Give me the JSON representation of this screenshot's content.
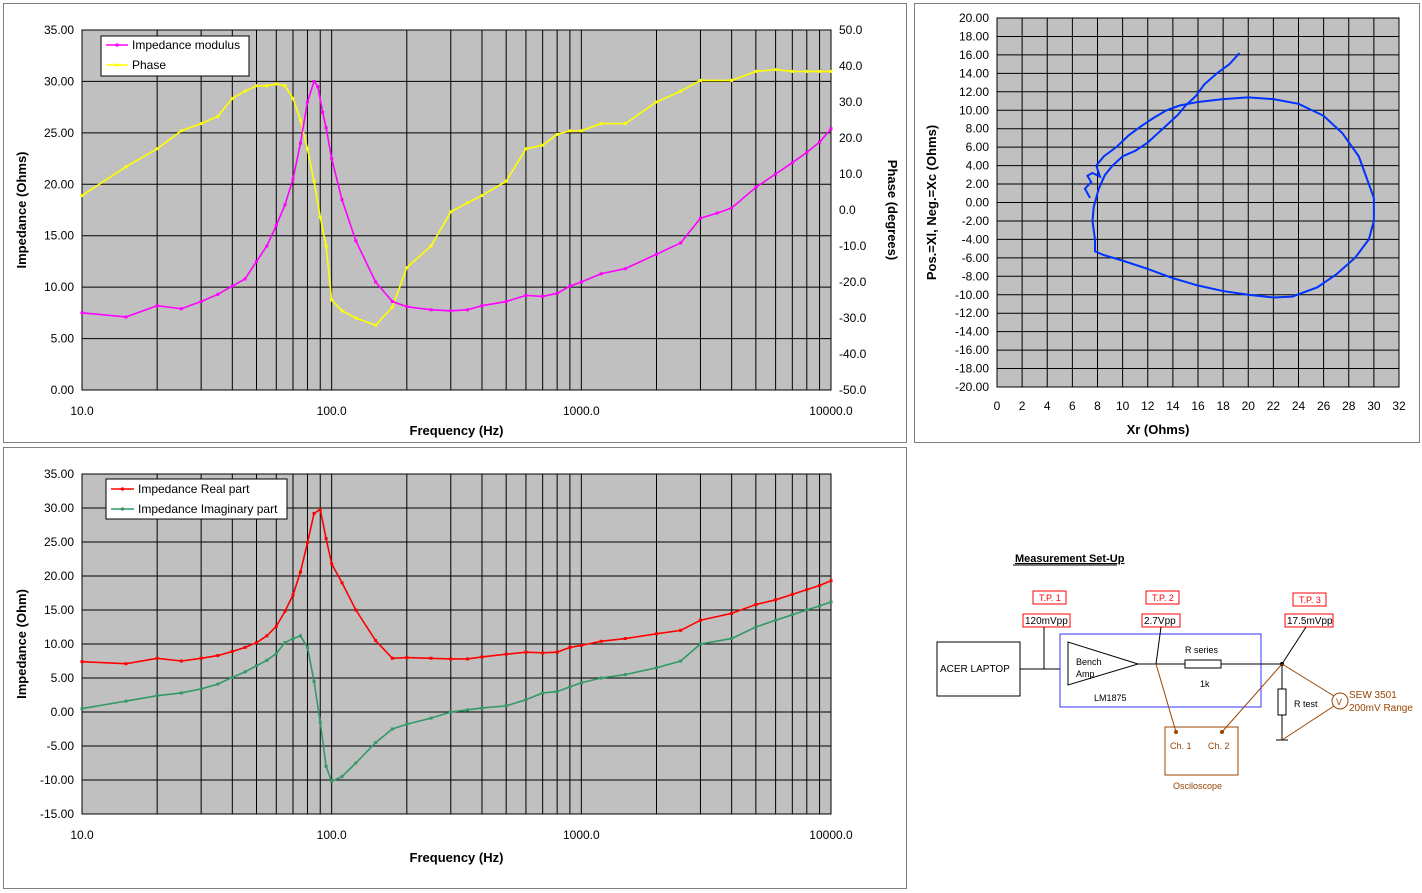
{
  "colors": {
    "plot_bg": "#c0c0c0",
    "modulus": "#ff00ff",
    "phase": "#ffff00",
    "real": "#ff0000",
    "imag": "#339966",
    "polar": "#0033ff",
    "tp_red": "#ff0000",
    "box_blue": "#3333ff",
    "scope_brown": "#994400"
  },
  "chart_data": [
    {
      "id": "modulus_phase",
      "type": "line",
      "xlabel": "Frequency (Hz)",
      "ylabel": "Impedance (Ohms)",
      "y2label": "Phase (degrees)",
      "xscale": "log",
      "xlim": [
        10,
        10000
      ],
      "ylim": [
        0,
        35
      ],
      "y2lim": [
        -50,
        50
      ],
      "xticks": [
        "10.0",
        "100.0",
        "1000.0",
        "10000.0"
      ],
      "yticks": [
        "0.00",
        "5.00",
        "10.00",
        "15.00",
        "20.00",
        "25.00",
        "30.00",
        "35.00"
      ],
      "y2ticks": [
        "-50.0",
        "-40.0",
        "-30.0",
        "-20.0",
        "-10.0",
        "0.0",
        "10.0",
        "20.0",
        "30.0",
        "40.0",
        "50.0"
      ],
      "grid": true,
      "legend": "top-left",
      "series": [
        {
          "name": "Impedance modulus",
          "axis": "left",
          "x": [
            10,
            15,
            20,
            25,
            30,
            35,
            40,
            45,
            50,
            55,
            60,
            65,
            70,
            75,
            80,
            85,
            88,
            92,
            95,
            100,
            110,
            125,
            150,
            175,
            200,
            250,
            300,
            350,
            400,
            500,
            600,
            700,
            800,
            900,
            1000,
            1200,
            1500,
            2000,
            2500,
            3000,
            3500,
            4000,
            5000,
            6000,
            7000,
            8000,
            9000,
            10000
          ],
          "y": [
            7.5,
            7.1,
            8.2,
            7.9,
            8.6,
            9.3,
            10.1,
            10.8,
            12.5,
            14.0,
            16.0,
            18.0,
            20.5,
            24.0,
            28.0,
            30.0,
            29.5,
            27.0,
            25.5,
            22.5,
            18.5,
            14.5,
            10.5,
            8.6,
            8.1,
            7.8,
            7.7,
            7.8,
            8.2,
            8.6,
            9.2,
            9.1,
            9.4,
            10.1,
            10.5,
            11.3,
            11.8,
            13.2,
            14.3,
            16.7,
            17.2,
            17.7,
            19.7,
            21.0,
            22.1,
            23.1,
            24.1,
            25.4
          ]
        },
        {
          "name": "Phase",
          "axis": "right",
          "x": [
            10,
            15,
            20,
            25,
            30,
            35,
            40,
            45,
            50,
            55,
            60,
            65,
            70,
            75,
            80,
            85,
            90,
            95,
            100,
            110,
            125,
            150,
            175,
            200,
            250,
            300,
            350,
            400,
            500,
            600,
            700,
            800,
            900,
            1000,
            1200,
            1500,
            2000,
            2500,
            3000,
            4000,
            5000,
            6000,
            7000,
            8000,
            9000,
            10000
          ],
          "y": [
            4,
            12,
            17,
            22,
            24,
            26,
            31,
            33,
            34.5,
            34.5,
            35,
            34.5,
            31,
            25,
            17,
            8,
            -2,
            -10,
            -25,
            -28,
            -30,
            -32,
            -27,
            -16,
            -10,
            -0.5,
            2,
            4,
            8,
            17,
            18,
            21,
            22,
            22,
            24,
            24,
            30,
            33,
            36,
            36,
            38.5,
            39,
            38.5,
            38.5,
            38.5,
            38.5
          ]
        }
      ]
    },
    {
      "id": "polar",
      "type": "line",
      "xlabel": "Xr (Ohms)",
      "ylabel": "Pos.=Xl, Neg.=Xc (Ohms)",
      "xlim": [
        0,
        32
      ],
      "ylim": [
        -20,
        20
      ],
      "xticks": [
        "0",
        "2",
        "4",
        "6",
        "8",
        "10",
        "12",
        "14",
        "16",
        "18",
        "20",
        "22",
        "24",
        "26",
        "28",
        "30",
        "32"
      ],
      "yticks": [
        "-20.00",
        "-18.00",
        "-16.00",
        "-14.00",
        "-12.00",
        "-10.00",
        "-8.00",
        "-6.00",
        "-4.00",
        "-2.00",
        "0.00",
        "2.00",
        "4.00",
        "6.00",
        "8.00",
        "10.00",
        "12.00",
        "14.00",
        "16.00",
        "18.00",
        "20.00"
      ],
      "grid": true,
      "series": [
        {
          "x": [
            7.4,
            7.0,
            7.5,
            7.2,
            7.6,
            8.2,
            7.9,
            8.5,
            9.5,
            10.5,
            11.5,
            12.5,
            13.5,
            14.5,
            16.0,
            18.0,
            20.0,
            22.0,
            24.0,
            26.0,
            27.5,
            28.8,
            29.6,
            30.0,
            30.0,
            29.6,
            28.5,
            27.0,
            25.5,
            23.5,
            22.0,
            20.0,
            18.0,
            16.0,
            14.0,
            12.0,
            10.0,
            8.5,
            7.8,
            7.8,
            7.6,
            7.7,
            8.1,
            8.6,
            9.2,
            10.0,
            11.0,
            12.0,
            12.8,
            13.6,
            14.4,
            15.0,
            15.8,
            16.5,
            17.5,
            18.5,
            19.3
          ],
          "y": [
            0.5,
            1.5,
            2.2,
            2.9,
            3.2,
            2.8,
            4.0,
            5.0,
            6.0,
            7.3,
            8.3,
            9.2,
            10.0,
            10.5,
            10.9,
            11.2,
            11.4,
            11.2,
            10.7,
            9.4,
            7.5,
            5.0,
            2.0,
            0.5,
            -2.0,
            -4.0,
            -6.0,
            -7.8,
            -9.2,
            -10.2,
            -10.3,
            -10.0,
            -9.6,
            -9.0,
            -8.2,
            -7.2,
            -6.3,
            -5.7,
            -5.3,
            -4.0,
            -2.0,
            -0.5,
            1.5,
            3.0,
            4.0,
            5.0,
            5.6,
            6.5,
            7.5,
            8.5,
            9.5,
            10.5,
            11.5,
            12.8,
            14.0,
            15.0,
            16.2
          ]
        }
      ]
    },
    {
      "id": "real_imag",
      "type": "line",
      "xlabel": "Frequency (Hz)",
      "ylabel": "Impedance (Ohm)",
      "xscale": "log",
      "xlim": [
        10,
        10000
      ],
      "ylim": [
        -15,
        35
      ],
      "xticks": [
        "10.0",
        "100.0",
        "1000.0",
        "10000.0"
      ],
      "yticks": [
        "-15.00",
        "-10.00",
        "-5.00",
        "0.00",
        "5.00",
        "10.00",
        "15.00",
        "20.00",
        "25.00",
        "30.00",
        "35.00"
      ],
      "grid": true,
      "legend": "top-left",
      "series": [
        {
          "name": "Impedance Real part",
          "x": [
            10,
            15,
            20,
            25,
            30,
            35,
            40,
            45,
            50,
            55,
            60,
            65,
            70,
            75,
            80,
            85,
            90,
            95,
            100,
            110,
            125,
            150,
            175,
            200,
            250,
            300,
            350,
            400,
            500,
            600,
            700,
            800,
            900,
            1000,
            1200,
            1500,
            2000,
            2500,
            3000,
            4000,
            5000,
            6000,
            7000,
            8000,
            9000,
            10000
          ],
          "y": [
            7.4,
            7.1,
            7.9,
            7.5,
            7.9,
            8.3,
            8.9,
            9.5,
            10.2,
            11.2,
            12.6,
            14.8,
            17.2,
            20.6,
            24.9,
            29.2,
            29.8,
            25.5,
            21.8,
            19.0,
            15.0,
            10.5,
            7.9,
            8.0,
            7.9,
            7.8,
            7.8,
            8.1,
            8.5,
            8.8,
            8.7,
            8.8,
            9.5,
            9.8,
            10.4,
            10.8,
            11.5,
            12.0,
            13.5,
            14.5,
            15.8,
            16.5,
            17.3,
            18.0,
            18.6,
            19.3
          ]
        },
        {
          "name": "Impedance Imaginary part",
          "x": [
            10,
            15,
            20,
            25,
            30,
            35,
            40,
            45,
            50,
            55,
            60,
            65,
            70,
            75,
            80,
            85,
            90,
            95,
            100,
            110,
            125,
            150,
            175,
            200,
            250,
            300,
            350,
            400,
            500,
            600,
            700,
            800,
            900,
            1000,
            1200,
            1500,
            2000,
            2500,
            3000,
            4000,
            5000,
            6000,
            7000,
            8000,
            9000,
            10000
          ],
          "y": [
            0.5,
            1.6,
            2.4,
            2.8,
            3.4,
            4.1,
            5.1,
            5.9,
            6.8,
            7.6,
            8.6,
            10.2,
            10.8,
            11.2,
            9.5,
            4.5,
            -1.5,
            -8.0,
            -10.2,
            -9.5,
            -7.5,
            -4.5,
            -2.5,
            -1.8,
            -0.9,
            0.0,
            0.3,
            0.6,
            0.9,
            1.8,
            2.8,
            3.0,
            3.7,
            4.3,
            5.0,
            5.5,
            6.5,
            7.5,
            10.0,
            10.8,
            12.5,
            13.5,
            14.3,
            15.0,
            15.6,
            16.2
          ]
        }
      ]
    }
  ],
  "schematic": {
    "title": "Measurement Set-Up",
    "tp1": "T.P. 1",
    "tp2": "T.P. 2",
    "tp3": "T.P. 3",
    "v1": "120mVpp",
    "v2": "2.7Vpp",
    "v3": "17.5mVpp",
    "laptop": "ACER LAPTOP",
    "amp_line1": "Bench",
    "amp_line2": "Amp",
    "amp_chip": "LM1875",
    "rseries": "R series",
    "rseries_val": "1k",
    "rtest": "R test",
    "meter_symbol": "V",
    "meter_line1": "SEW 3501",
    "meter_line2": "200mV Range",
    "ch1": "Ch. 1",
    "ch2": "Ch. 2",
    "scope": "Osciloscope"
  }
}
